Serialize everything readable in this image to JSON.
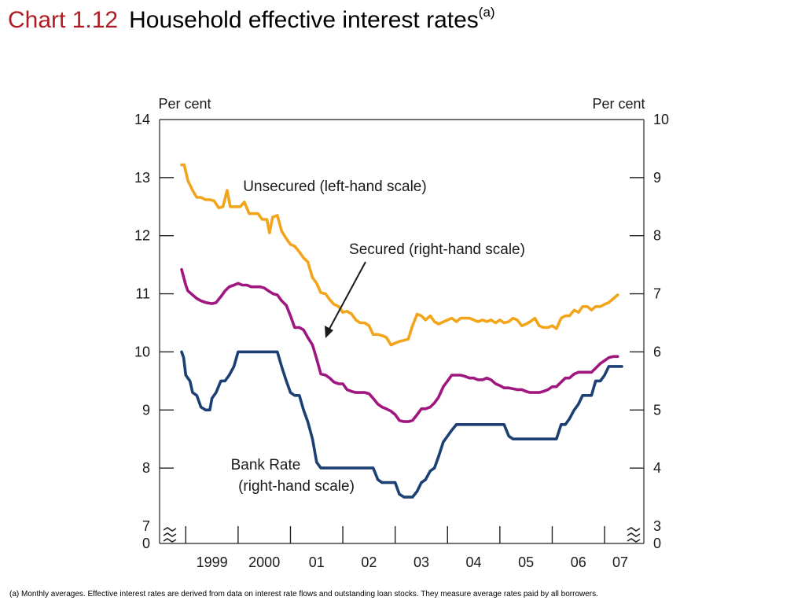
{
  "title": {
    "chart_number": "Chart 1.12",
    "text": "Household effective interest rates",
    "superscript": "(a)"
  },
  "footnote": "(a)  Monthly averages.  Effective interest rates are derived from data on interest rate flows and outstanding loan stocks.  They measure average rates paid by all borrowers.",
  "chart_data": {
    "type": "line",
    "left_axis": {
      "label": "Per cent",
      "range": [
        7,
        14
      ],
      "ticks": [
        "14",
        "13",
        "12",
        "11",
        "10",
        "9",
        "8",
        "7"
      ],
      "zero_label": "0"
    },
    "right_axis": {
      "label": "Per cent",
      "range": [
        3,
        10
      ],
      "ticks": [
        "10",
        "9",
        "8",
        "7",
        "6",
        "5",
        "4",
        "3"
      ],
      "zero_label": "0"
    },
    "x_axis": {
      "range": [
        1998.5,
        2007.75
      ],
      "year_ticks": [
        1999,
        2000,
        2001,
        2002,
        2003,
        2004,
        2005,
        2006,
        2007
      ],
      "labels": [
        "1999",
        "2000",
        "01",
        "02",
        "03",
        "04",
        "05",
        "06",
        "07"
      ]
    },
    "grid": false,
    "colors": {
      "unsecured": "#f2a51b",
      "secured": "#a0167f",
      "bank_rate": "#1c3f74"
    },
    "annotations": [
      {
        "series": "unsecured",
        "text": "Unsecured (left-hand scale)"
      },
      {
        "series": "secured",
        "text": "Secured (right-hand scale)",
        "arrow": true
      },
      {
        "series": "bank_rate",
        "lines": [
          "Bank Rate",
          "(right-hand scale)"
        ]
      }
    ],
    "series": [
      {
        "key": "unsecured",
        "axis": "left",
        "points": [
          [
            1998.92,
            13.22
          ],
          [
            1998.97,
            13.22
          ],
          [
            1999.04,
            12.95
          ],
          [
            1999.13,
            12.78
          ],
          [
            1999.21,
            12.66
          ],
          [
            1999.29,
            12.66
          ],
          [
            1999.38,
            12.62
          ],
          [
            1999.46,
            12.62
          ],
          [
            1999.54,
            12.6
          ],
          [
            1999.63,
            12.48
          ],
          [
            1999.71,
            12.5
          ],
          [
            1999.79,
            12.78
          ],
          [
            1999.85,
            12.5
          ],
          [
            1999.96,
            12.5
          ],
          [
            2000.04,
            12.5
          ],
          [
            2000.12,
            12.58
          ],
          [
            2000.21,
            12.38
          ],
          [
            2000.38,
            12.38
          ],
          [
            2000.46,
            12.28
          ],
          [
            2000.55,
            12.28
          ],
          [
            2000.6,
            12.05
          ],
          [
            2000.66,
            12.32
          ],
          [
            2000.75,
            12.35
          ],
          [
            2000.83,
            12.08
          ],
          [
            2000.92,
            11.95
          ],
          [
            2001.0,
            11.85
          ],
          [
            2001.08,
            11.82
          ],
          [
            2001.17,
            11.72
          ],
          [
            2001.25,
            11.62
          ],
          [
            2001.33,
            11.55
          ],
          [
            2001.42,
            11.28
          ],
          [
            2001.5,
            11.18
          ],
          [
            2001.58,
            11.02
          ],
          [
            2001.67,
            11.0
          ],
          [
            2001.75,
            10.9
          ],
          [
            2001.83,
            10.82
          ],
          [
            2001.92,
            10.78
          ],
          [
            2002.0,
            10.68
          ],
          [
            2002.08,
            10.7
          ],
          [
            2002.17,
            10.65
          ],
          [
            2002.25,
            10.55
          ],
          [
            2002.33,
            10.5
          ],
          [
            2002.42,
            10.5
          ],
          [
            2002.5,
            10.45
          ],
          [
            2002.58,
            10.3
          ],
          [
            2002.67,
            10.3
          ],
          [
            2002.75,
            10.28
          ],
          [
            2002.83,
            10.25
          ],
          [
            2002.92,
            10.12
          ],
          [
            2003.0,
            10.15
          ],
          [
            2003.08,
            10.18
          ],
          [
            2003.17,
            10.2
          ],
          [
            2003.25,
            10.22
          ],
          [
            2003.33,
            10.45
          ],
          [
            2003.42,
            10.65
          ],
          [
            2003.5,
            10.62
          ],
          [
            2003.58,
            10.55
          ],
          [
            2003.67,
            10.62
          ],
          [
            2003.75,
            10.52
          ],
          [
            2003.83,
            10.48
          ],
          [
            2004.0,
            10.55
          ],
          [
            2004.08,
            10.58
          ],
          [
            2004.17,
            10.52
          ],
          [
            2004.25,
            10.58
          ],
          [
            2004.42,
            10.58
          ],
          [
            2004.58,
            10.52
          ],
          [
            2004.67,
            10.55
          ],
          [
            2004.75,
            10.52
          ],
          [
            2004.83,
            10.55
          ],
          [
            2004.92,
            10.5
          ],
          [
            2005.0,
            10.55
          ],
          [
            2005.08,
            10.5
          ],
          [
            2005.17,
            10.52
          ],
          [
            2005.25,
            10.58
          ],
          [
            2005.33,
            10.55
          ],
          [
            2005.42,
            10.45
          ],
          [
            2005.5,
            10.48
          ],
          [
            2005.58,
            10.52
          ],
          [
            2005.67,
            10.58
          ],
          [
            2005.75,
            10.45
          ],
          [
            2005.83,
            10.42
          ],
          [
            2005.92,
            10.42
          ],
          [
            2006.0,
            10.45
          ],
          [
            2006.08,
            10.4
          ],
          [
            2006.17,
            10.58
          ],
          [
            2006.25,
            10.62
          ],
          [
            2006.33,
            10.62
          ],
          [
            2006.42,
            10.72
          ],
          [
            2006.5,
            10.68
          ],
          [
            2006.58,
            10.78
          ],
          [
            2006.67,
            10.78
          ],
          [
            2006.75,
            10.72
          ],
          [
            2006.83,
            10.78
          ],
          [
            2006.92,
            10.78
          ],
          [
            2007.0,
            10.82
          ],
          [
            2007.08,
            10.85
          ],
          [
            2007.17,
            10.92
          ],
          [
            2007.25,
            10.98
          ]
        ]
      },
      {
        "key": "secured",
        "axis": "right",
        "points": [
          [
            1998.92,
            7.42
          ],
          [
            1999.0,
            7.15
          ],
          [
            1999.04,
            7.05
          ],
          [
            1999.13,
            6.98
          ],
          [
            1999.21,
            6.92
          ],
          [
            1999.29,
            6.88
          ],
          [
            1999.38,
            6.85
          ],
          [
            1999.5,
            6.83
          ],
          [
            1999.58,
            6.85
          ],
          [
            1999.67,
            6.95
          ],
          [
            1999.75,
            7.05
          ],
          [
            1999.83,
            7.12
          ],
          [
            1999.92,
            7.15
          ],
          [
            2000.0,
            7.18
          ],
          [
            2000.08,
            7.15
          ],
          [
            2000.17,
            7.15
          ],
          [
            2000.25,
            7.12
          ],
          [
            2000.33,
            7.12
          ],
          [
            2000.42,
            7.12
          ],
          [
            2000.5,
            7.1
          ],
          [
            2000.58,
            7.05
          ],
          [
            2000.67,
            7.0
          ],
          [
            2000.75,
            6.98
          ],
          [
            2000.83,
            6.88
          ],
          [
            2000.92,
            6.8
          ],
          [
            2001.0,
            6.62
          ],
          [
            2001.08,
            6.42
          ],
          [
            2001.17,
            6.42
          ],
          [
            2001.25,
            6.38
          ],
          [
            2001.33,
            6.25
          ],
          [
            2001.42,
            6.12
          ],
          [
            2001.5,
            5.88
          ],
          [
            2001.58,
            5.62
          ],
          [
            2001.67,
            5.6
          ],
          [
            2001.75,
            5.55
          ],
          [
            2001.83,
            5.48
          ],
          [
            2001.92,
            5.45
          ],
          [
            2002.0,
            5.45
          ],
          [
            2002.08,
            5.35
          ],
          [
            2002.17,
            5.32
          ],
          [
            2002.25,
            5.3
          ],
          [
            2002.42,
            5.3
          ],
          [
            2002.5,
            5.28
          ],
          [
            2002.58,
            5.2
          ],
          [
            2002.67,
            5.1
          ],
          [
            2002.75,
            5.05
          ],
          [
            2002.83,
            5.02
          ],
          [
            2002.92,
            4.98
          ],
          [
            2003.0,
            4.92
          ],
          [
            2003.08,
            4.82
          ],
          [
            2003.17,
            4.8
          ],
          [
            2003.25,
            4.8
          ],
          [
            2003.33,
            4.82
          ],
          [
            2003.42,
            4.92
          ],
          [
            2003.5,
            5.02
          ],
          [
            2003.58,
            5.02
          ],
          [
            2003.67,
            5.05
          ],
          [
            2003.75,
            5.12
          ],
          [
            2003.83,
            5.22
          ],
          [
            2003.92,
            5.4
          ],
          [
            2004.0,
            5.5
          ],
          [
            2004.08,
            5.6
          ],
          [
            2004.17,
            5.6
          ],
          [
            2004.25,
            5.6
          ],
          [
            2004.33,
            5.58
          ],
          [
            2004.42,
            5.55
          ],
          [
            2004.5,
            5.55
          ],
          [
            2004.58,
            5.52
          ],
          [
            2004.67,
            5.52
          ],
          [
            2004.75,
            5.55
          ],
          [
            2004.83,
            5.52
          ],
          [
            2004.92,
            5.45
          ],
          [
            2005.0,
            5.42
          ],
          [
            2005.08,
            5.38
          ],
          [
            2005.17,
            5.38
          ],
          [
            2005.33,
            5.35
          ],
          [
            2005.42,
            5.35
          ],
          [
            2005.5,
            5.32
          ],
          [
            2005.58,
            5.3
          ],
          [
            2005.75,
            5.3
          ],
          [
            2005.83,
            5.32
          ],
          [
            2005.92,
            5.35
          ],
          [
            2006.0,
            5.4
          ],
          [
            2006.08,
            5.4
          ],
          [
            2006.17,
            5.48
          ],
          [
            2006.25,
            5.55
          ],
          [
            2006.33,
            5.55
          ],
          [
            2006.42,
            5.62
          ],
          [
            2006.5,
            5.65
          ],
          [
            2006.58,
            5.65
          ],
          [
            2006.67,
            5.65
          ],
          [
            2006.75,
            5.65
          ],
          [
            2006.83,
            5.72
          ],
          [
            2006.92,
            5.8
          ],
          [
            2007.0,
            5.85
          ],
          [
            2007.08,
            5.9
          ],
          [
            2007.17,
            5.92
          ],
          [
            2007.25,
            5.92
          ]
        ]
      },
      {
        "key": "bank_rate",
        "axis": "right",
        "points": [
          [
            1998.92,
            6.0
          ],
          [
            1998.96,
            5.9
          ],
          [
            1999.0,
            5.6
          ],
          [
            1999.08,
            5.5
          ],
          [
            1999.13,
            5.3
          ],
          [
            1999.21,
            5.25
          ],
          [
            1999.29,
            5.05
          ],
          [
            1999.38,
            5.0
          ],
          [
            1999.46,
            5.0
          ],
          [
            1999.5,
            5.2
          ],
          [
            1999.58,
            5.3
          ],
          [
            1999.67,
            5.5
          ],
          [
            1999.75,
            5.5
          ],
          [
            1999.83,
            5.6
          ],
          [
            1999.92,
            5.75
          ],
          [
            2000.0,
            6.0
          ],
          [
            2000.08,
            6.0
          ],
          [
            2000.75,
            6.0
          ],
          [
            2000.83,
            5.75
          ],
          [
            2000.92,
            5.5
          ],
          [
            2001.0,
            5.3
          ],
          [
            2001.08,
            5.25
          ],
          [
            2001.17,
            5.25
          ],
          [
            2001.25,
            5.0
          ],
          [
            2001.33,
            4.8
          ],
          [
            2001.42,
            4.5
          ],
          [
            2001.5,
            4.1
          ],
          [
            2001.58,
            4.0
          ],
          [
            2002.0,
            4.0
          ],
          [
            2002.5,
            4.0
          ],
          [
            2002.58,
            4.0
          ],
          [
            2002.67,
            3.8
          ],
          [
            2002.75,
            3.75
          ],
          [
            2002.92,
            3.75
          ],
          [
            2003.0,
            3.75
          ],
          [
            2003.08,
            3.55
          ],
          [
            2003.17,
            3.5
          ],
          [
            2003.33,
            3.5
          ],
          [
            2003.42,
            3.6
          ],
          [
            2003.5,
            3.75
          ],
          [
            2003.58,
            3.8
          ],
          [
            2003.67,
            3.95
          ],
          [
            2003.75,
            4.0
          ],
          [
            2003.83,
            4.2
          ],
          [
            2003.92,
            4.45
          ],
          [
            2004.0,
            4.55
          ],
          [
            2004.08,
            4.65
          ],
          [
            2004.17,
            4.75
          ],
          [
            2004.25,
            4.75
          ],
          [
            2004.5,
            4.75
          ],
          [
            2004.83,
            4.75
          ],
          [
            2004.92,
            4.75
          ],
          [
            2005.0,
            4.75
          ],
          [
            2005.08,
            4.75
          ],
          [
            2005.17,
            4.55
          ],
          [
            2005.25,
            4.5
          ],
          [
            2005.5,
            4.5
          ],
          [
            2005.92,
            4.5
          ],
          [
            2006.0,
            4.5
          ],
          [
            2006.08,
            4.5
          ],
          [
            2006.17,
            4.75
          ],
          [
            2006.25,
            4.75
          ],
          [
            2006.33,
            4.85
          ],
          [
            2006.42,
            5.0
          ],
          [
            2006.5,
            5.1
          ],
          [
            2006.58,
            5.25
          ],
          [
            2006.67,
            5.25
          ],
          [
            2006.75,
            5.25
          ],
          [
            2006.83,
            5.5
          ],
          [
            2006.92,
            5.5
          ],
          [
            2007.0,
            5.6
          ],
          [
            2007.08,
            5.75
          ],
          [
            2007.17,
            5.75
          ],
          [
            2007.25,
            5.75
          ],
          [
            2007.33,
            5.75
          ]
        ]
      }
    ]
  }
}
